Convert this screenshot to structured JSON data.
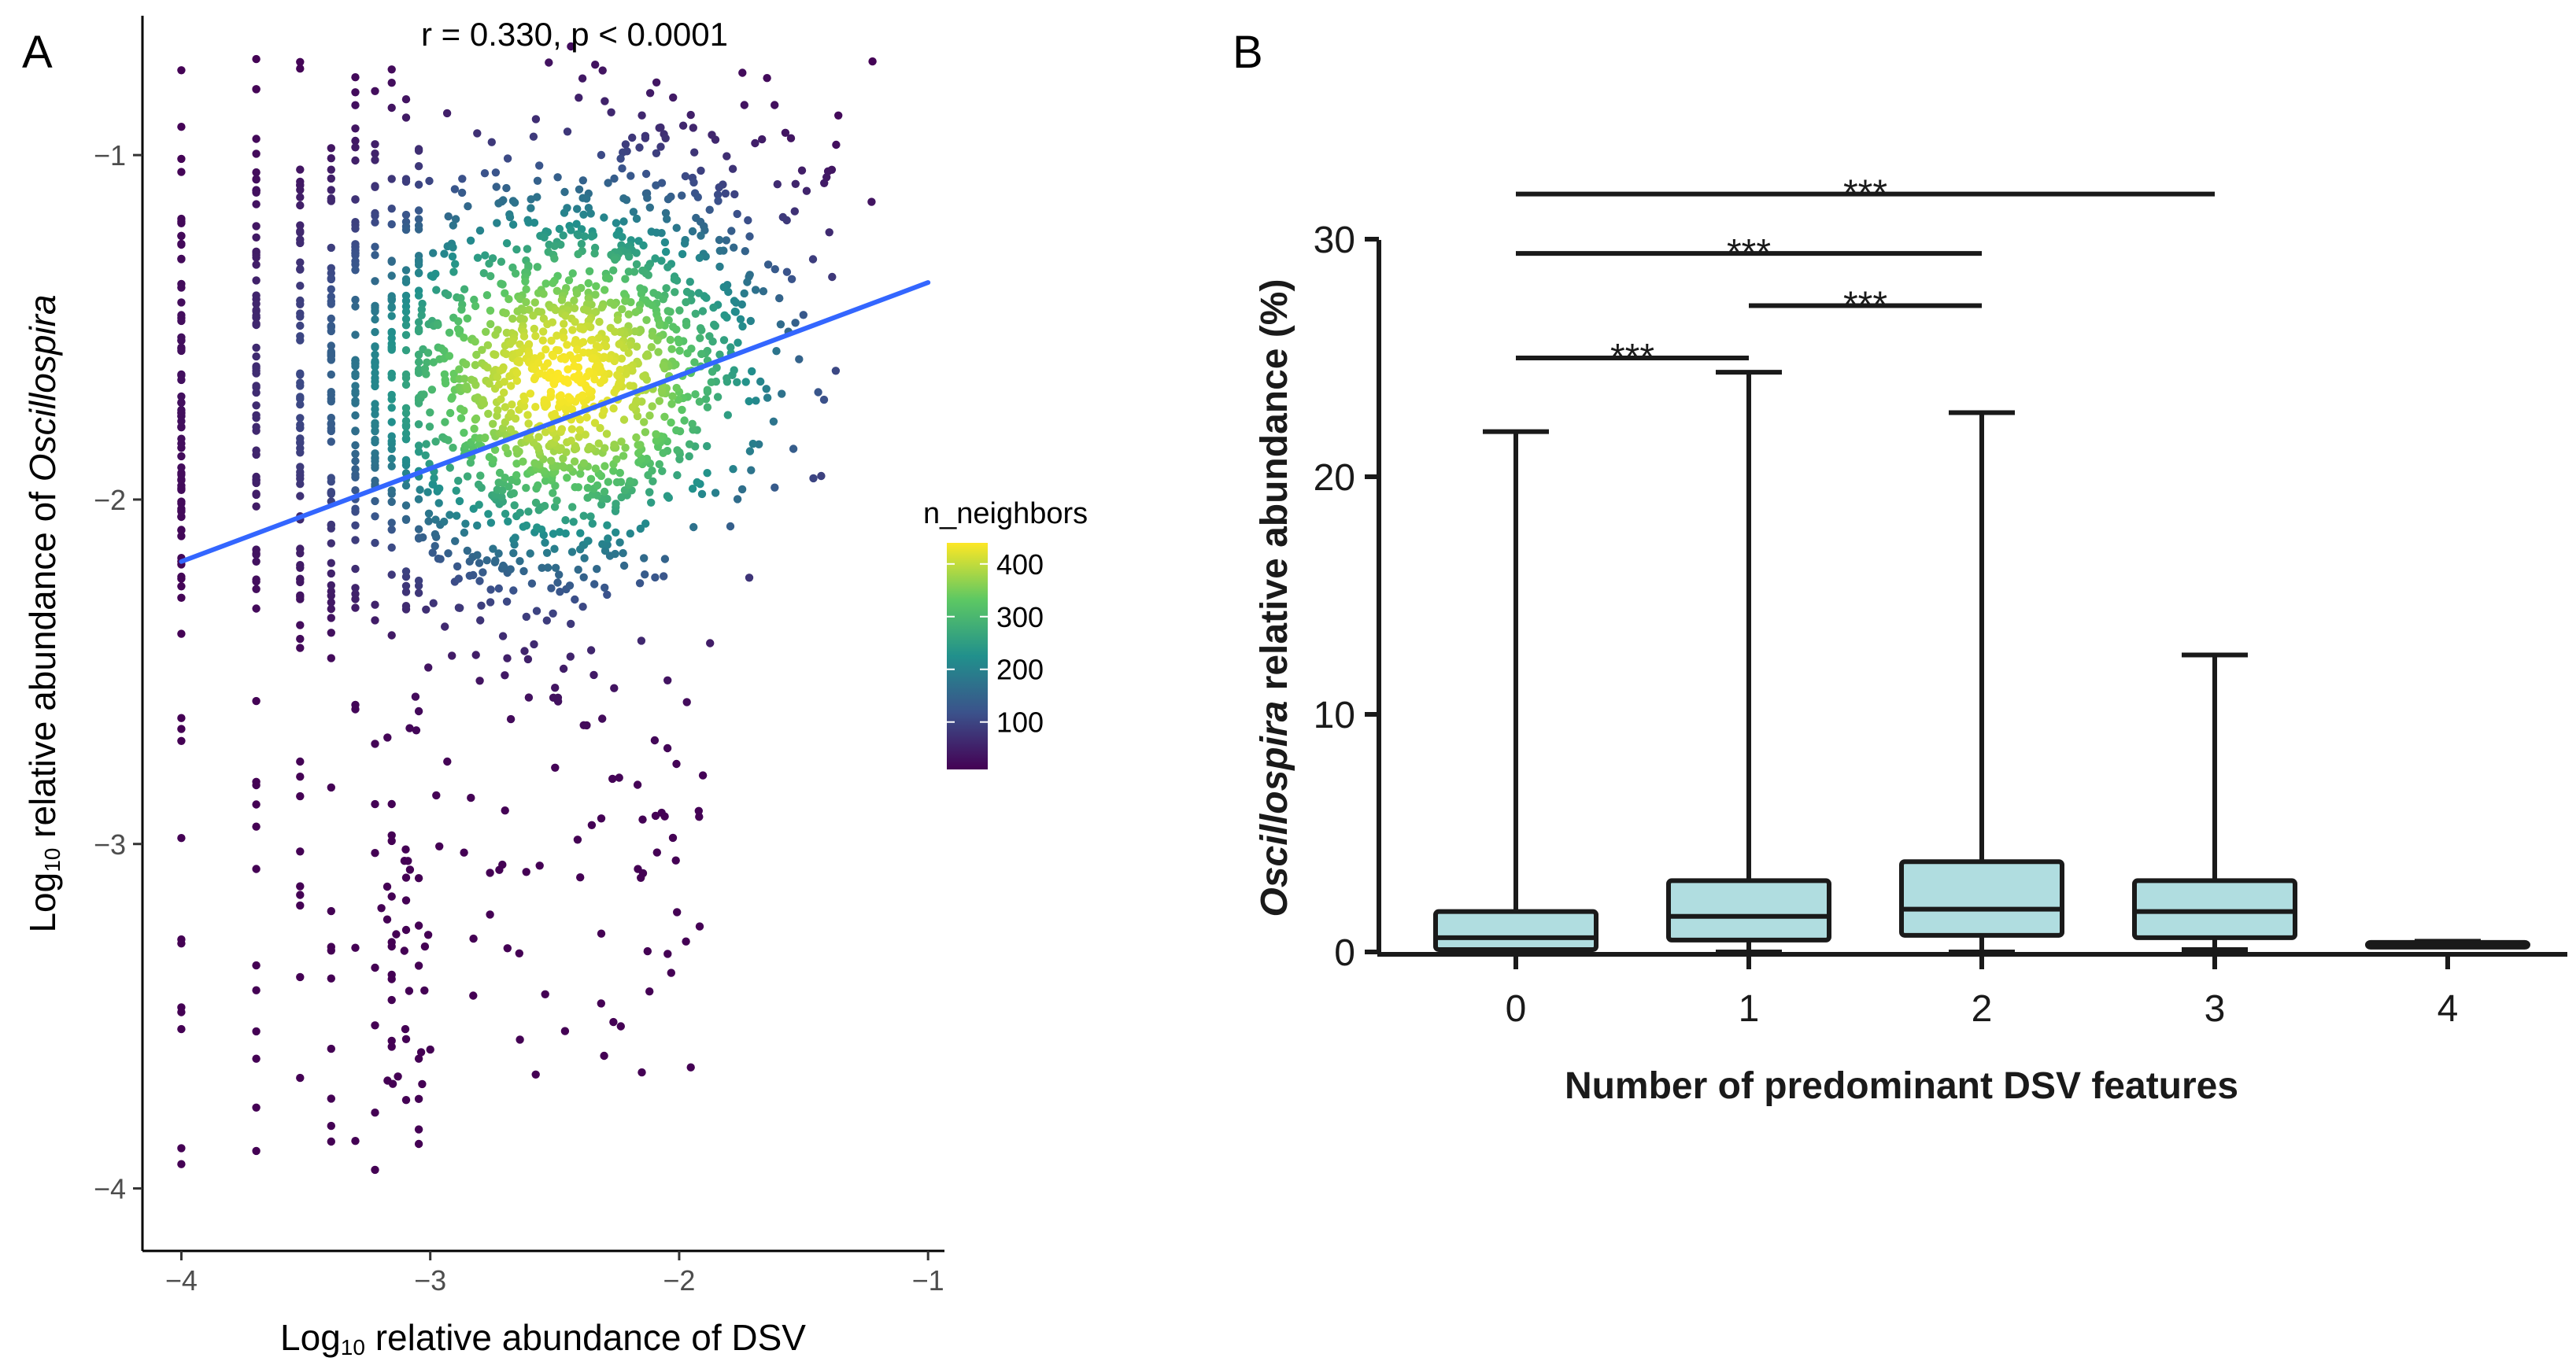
{
  "panel_a": {
    "letter": "A"
  },
  "panel_b": {
    "letter": "B"
  },
  "chart_data": [
    {
      "type": "scatter",
      "title": "r = 0.330, p < 0.0001",
      "xlabel_prefix": "Log",
      "xlabel_sub": "10",
      "xlabel_rest": " relative abundance of DSV",
      "ylabel_prefix": "Log",
      "ylabel_sub": "10",
      "ylabel_rest": " relative abundance of ",
      "ylabel_italic": "Oscillospira",
      "xlim": [
        -4.15,
        -0.95
      ],
      "ylim": [
        -4.17,
        -0.6
      ],
      "x_ticks": [
        -4,
        -3,
        -2,
        -1
      ],
      "x_tick_labels": [
        "−4",
        "−3",
        "−2",
        "−1"
      ],
      "y_ticks": [
        -4,
        -3,
        -2,
        -1
      ],
      "y_tick_labels": [
        "−4",
        "−3",
        "−2",
        "−1"
      ],
      "columns_x": [
        -4.0,
        -3.699,
        -3.523,
        -3.398,
        -3.301,
        -3.222,
        -3.155,
        -3.097,
        -3.046
      ],
      "cloud_center": [
        -2.45,
        -1.65
      ],
      "regression": {
        "x": [
          -4.0,
          -1.0
        ],
        "y": [
          -2.18,
          -1.37
        ],
        "color": "#3366ff"
      },
      "grid": false,
      "colorbar": {
        "title": "n_neighbors",
        "ticks": [
          400,
          300,
          200,
          100
        ],
        "range": [
          10,
          440
        ],
        "colors": [
          "#440154",
          "#3b528b",
          "#21908c",
          "#5dc863",
          "#fde725"
        ]
      }
    },
    {
      "type": "box",
      "categories": [
        "0",
        "1",
        "2",
        "3",
        "4"
      ],
      "xlabel": "Number of predominant DSV features",
      "ylabel_italic": "Oscillospira",
      "ylabel_rest": " relative abundance (%)",
      "ylim": [
        0,
        30
      ],
      "y_ticks": [
        0,
        10,
        20,
        30
      ],
      "boxes": [
        {
          "whisker_low": 0.0,
          "q1": 0.1,
          "median": 0.6,
          "q3": 1.7,
          "whisker_high": 21.9
        },
        {
          "whisker_low": 0.0,
          "q1": 0.5,
          "median": 1.5,
          "q3": 3.0,
          "whisker_high": 24.4
        },
        {
          "whisker_low": 0.0,
          "q1": 0.7,
          "median": 1.8,
          "q3": 3.8,
          "whisker_high": 22.7
        },
        {
          "whisker_low": 0.1,
          "q1": 0.6,
          "median": 1.7,
          "q3": 3.0,
          "whisker_high": 12.5
        },
        {
          "whisker_low": 0.25,
          "q1": 0.3,
          "median": 0.35,
          "q3": 0.4,
          "whisker_high": 0.45
        }
      ],
      "box_color": "#b0dde0",
      "significance": [
        {
          "from": 0,
          "to": 1,
          "y": 25.0,
          "label": "***"
        },
        {
          "from": 1,
          "to": 2,
          "y": 27.2,
          "label": "***"
        },
        {
          "from": 0,
          "to": 2,
          "y": 29.4,
          "label": "***"
        },
        {
          "from": 0,
          "to": 3,
          "y": 31.9,
          "label": "***"
        }
      ]
    }
  ]
}
